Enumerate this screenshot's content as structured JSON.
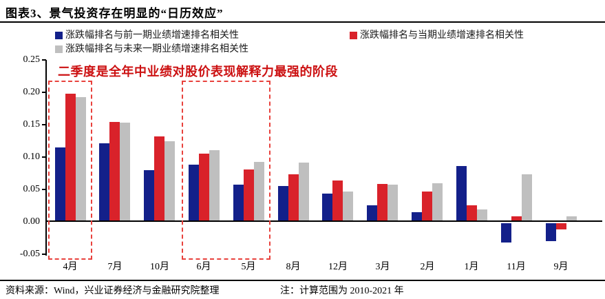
{
  "header": {
    "title": "图表3、景气投资存在明显的“日历效应”"
  },
  "legend": {
    "items": [
      {
        "id": "prev",
        "label": "涨跌幅排名与前一期业绩增速排名相关性",
        "color": "#13208a"
      },
      {
        "id": "current",
        "label": "涨跌幅排名与当期业绩增速排名相关性",
        "color": "#d9222a"
      },
      {
        "id": "next",
        "label": "涨跌幅排名与未来一期业绩增速排名相关性",
        "color": "#bfbfbf"
      }
    ]
  },
  "annotation": {
    "text": "二季度是全年中业绩对股价表现解释力最强的阶段",
    "color": "#cc1112"
  },
  "chart_data": {
    "type": "bar",
    "title": "景气投资存在明显的“日历效应”",
    "categories": [
      "4月",
      "7月",
      "10月",
      "6月",
      "5月",
      "8月",
      "12月",
      "3月",
      "2月",
      "1月",
      "11月",
      "9月"
    ],
    "series": [
      {
        "name": "涨跌幅排名与前一期业绩增速排名相关性",
        "color": "#13208a",
        "values": [
          0.115,
          0.121,
          0.08,
          0.088,
          0.057,
          0.055,
          0.044,
          0.025,
          0.015,
          0.086,
          -0.03,
          -0.028
        ]
      },
      {
        "name": "涨跌幅排名与当期业绩增速排名相关性",
        "color": "#d9222a",
        "values": [
          0.198,
          0.154,
          0.132,
          0.105,
          0.081,
          0.073,
          0.064,
          0.059,
          0.047,
          0.026,
          0.009,
          -0.01
        ]
      },
      {
        "name": "涨跌幅排名与未来一期业绩增速排名相关性",
        "color": "#bfbfbf",
        "values": [
          0.193,
          0.153,
          0.124,
          0.111,
          0.093,
          0.092,
          0.047,
          0.057,
          0.06,
          0.019,
          0.073,
          0.008
        ]
      }
    ],
    "xlabel": "",
    "ylabel": "",
    "ylim": [
      -0.05,
      0.25
    ],
    "y_ticks": [
      "0.25",
      "0.20",
      "0.15",
      "0.10",
      "0.05",
      "0.00",
      "-0.05"
    ],
    "grid": false,
    "legend_position": "top",
    "highlight_boxes": [
      {
        "from_category": "4月",
        "to_category": "4月"
      },
      {
        "from_category": "6月",
        "to_category": "5月"
      }
    ],
    "highlight_color": "#e8413c"
  },
  "footer": {
    "source": "资料来源：Wind，兴业证券经济与金融研究院整理",
    "note": "注：计算范围为 2010-2021 年"
  }
}
